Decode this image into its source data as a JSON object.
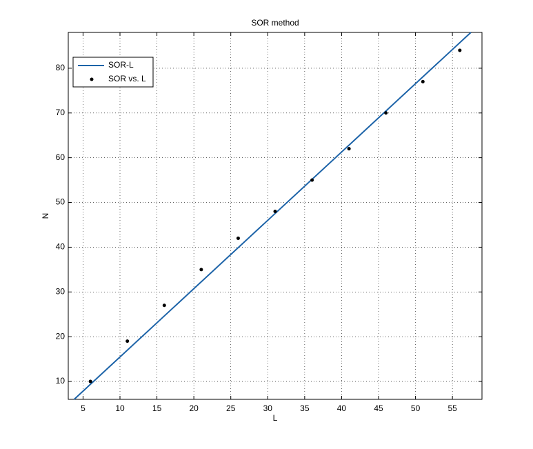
{
  "chart_data": {
    "type": "line",
    "title": "SOR method",
    "x_label": "L",
    "y_label": "N",
    "xlim": [
      3,
      59
    ],
    "ylim": [
      6,
      88
    ],
    "xticks": [
      5,
      10,
      15,
      20,
      25,
      30,
      35,
      40,
      45,
      50,
      55
    ],
    "yticks": [
      10,
      20,
      30,
      40,
      50,
      60,
      70,
      80
    ],
    "grid": true,
    "legend": "upper left",
    "series": [
      {
        "name": "SOR-L",
        "color": "#1c63a8",
        "style": "line",
        "x": [
          3.8,
          57.5
        ],
        "values": [
          6,
          88
        ]
      },
      {
        "name": "SOR vs. L",
        "color": "#000000",
        "style": "points",
        "x": [
          6,
          11,
          16,
          21,
          26,
          31,
          36,
          41,
          46,
          51,
          56
        ],
        "values": [
          10,
          19,
          27,
          35,
          42,
          48,
          55,
          62,
          70,
          77,
          84
        ]
      }
    ]
  }
}
